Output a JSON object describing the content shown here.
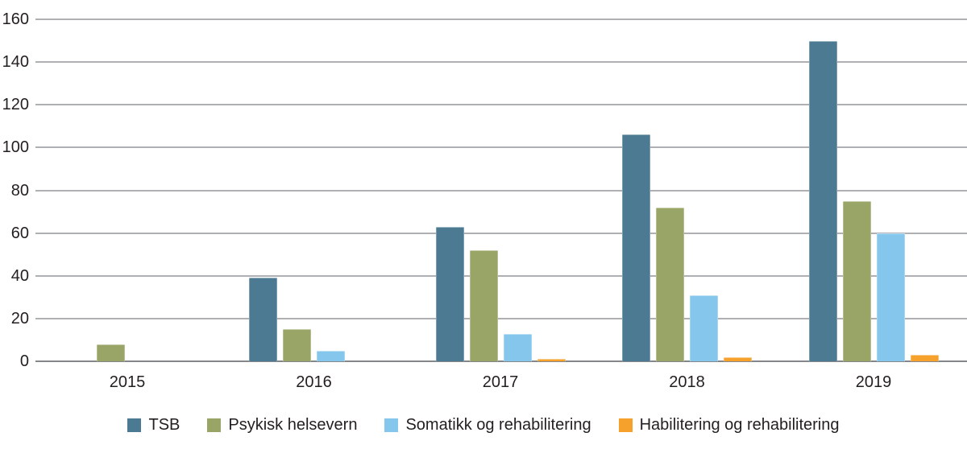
{
  "chart_data": {
    "type": "bar",
    "categories": [
      "2015",
      "2016",
      "2017",
      "2018",
      "2019"
    ],
    "series": [
      {
        "name": "TSB",
        "color": "#4C7A93",
        "values": [
          0,
          39,
          63,
          106,
          150
        ]
      },
      {
        "name": "Psykisk helsevern",
        "color": "#98A566",
        "values": [
          8,
          15,
          52,
          72,
          75
        ]
      },
      {
        "name": "Somatikk og rehabilitering",
        "color": "#85C7EC",
        "values": [
          0,
          5,
          13,
          31,
          60
        ]
      },
      {
        "name": "Habilitering og rehabilitering",
        "color": "#F5A12C",
        "values": [
          0,
          0,
          1,
          2,
          3
        ]
      }
    ],
    "ylim": [
      0,
      160
    ],
    "yticks": [
      0,
      20,
      40,
      60,
      80,
      100,
      120,
      140,
      160
    ],
    "grid": "horizontal",
    "legend_position": "bottom"
  },
  "colors": {
    "background": "#FFFFFF",
    "text": "#231F20",
    "gridline": "#AEB0B3",
    "axis_line": "#85878A"
  }
}
